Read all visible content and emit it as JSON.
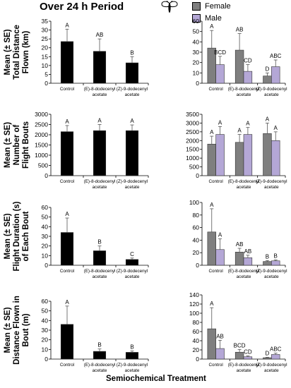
{
  "figure": {
    "title": "Over 24 h Period",
    "xlabel": "Semiochemical Treatment",
    "legend": [
      {
        "label": "Female",
        "color": "#7f7f7f"
      },
      {
        "label": "Male",
        "color": "#b4a7d6"
      }
    ],
    "icon": "moth-icon"
  },
  "chart_data": [
    {
      "type": "bar",
      "panel": "total-distance-overall",
      "ylabel": "Mean (± SE) Total Distance Flown (km)",
      "categories": [
        "Control",
        "(E)-8-dodecenyl acetate",
        "(Z)-9-dodecenyl acetate"
      ],
      "ylim": [
        0,
        35
      ],
      "yticks": [
        0,
        5,
        10,
        15,
        20,
        25,
        30,
        35
      ],
      "series": [
        {
          "color": "#000000",
          "values": [
            23.5,
            18,
            11.5
          ],
          "errors": [
            7,
            7,
            3.5
          ],
          "letters": [
            "A",
            "AB",
            "B"
          ]
        }
      ]
    },
    {
      "type": "bar",
      "panel": "total-distance-sex",
      "categories": [
        "Control",
        "(E)-8-dodecenyl acetate",
        "(Z)-9-dodecenyl acetate"
      ],
      "ylim": [
        0,
        60
      ],
      "yticks": [
        0,
        10,
        20,
        30,
        40,
        50,
        60
      ],
      "series": [
        {
          "name": "Female",
          "color": "#7f7f7f",
          "values": [
            34,
            32,
            7
          ],
          "errors": [
            17,
            16,
            3
          ],
          "letters": [
            "A",
            "AB",
            "D"
          ]
        },
        {
          "name": "Male",
          "color": "#b4a7d6",
          "values": [
            18,
            11.5,
            16
          ],
          "errors": [
            8,
            6.5,
            6.5
          ],
          "letters": [
            "BCD",
            "CD",
            "ABC"
          ]
        }
      ]
    },
    {
      "type": "bar",
      "panel": "flight-bouts-overall",
      "ylabel": "Mean (± SE) Number of Flight Bouts",
      "categories": [
        "Control",
        "(E)-8-dodecenyl acetate",
        "(Z)-9-dodecenyl acetate"
      ],
      "ylim": [
        0,
        3000
      ],
      "yticks": [
        0,
        500,
        1000,
        1500,
        2000,
        2500,
        3000
      ],
      "series": [
        {
          "color": "#000000",
          "values": [
            2150,
            2200,
            2200
          ],
          "errors": [
            300,
            300,
            280
          ],
          "letters": [
            "A",
            "A",
            "A"
          ]
        }
      ]
    },
    {
      "type": "bar",
      "panel": "flight-bouts-sex",
      "categories": [
        "Control",
        "(E)-8-dodecenyl acetate",
        "(Z)-9-dodecenyl acetate"
      ],
      "ylim": [
        0,
        3500
      ],
      "yticks": [
        0,
        500,
        1000,
        1500,
        2000,
        2500,
        3000,
        3500
      ],
      "series": [
        {
          "name": "Female",
          "color": "#7f7f7f",
          "values": [
            1800,
            1900,
            2400
          ],
          "errors": [
            450,
            450,
            600
          ],
          "letters": [
            "A",
            "A",
            "A"
          ]
        },
        {
          "name": "Male",
          "color": "#b4a7d6",
          "values": [
            2350,
            2350,
            2000
          ],
          "errors": [
            450,
            400,
            500
          ],
          "letters": [
            "A",
            "A",
            "A"
          ]
        }
      ]
    },
    {
      "type": "bar",
      "panel": "bout-duration-overall",
      "ylabel": "Mean (± SE) Flight Duration (s) of Each Bout",
      "categories": [
        "Control",
        "(E)-8-dodecenyl acetate",
        "(Z)-9-dodecenyl acetate"
      ],
      "ylim": [
        0,
        60
      ],
      "yticks": [
        0,
        10,
        20,
        30,
        40,
        50,
        60
      ],
      "series": [
        {
          "color": "#000000",
          "values": [
            34,
            15,
            6
          ],
          "errors": [
            15,
            5,
            1.5
          ],
          "letters": [
            "A",
            "B",
            "C"
          ]
        }
      ]
    },
    {
      "type": "bar",
      "panel": "bout-duration-sex",
      "categories": [
        "Control",
        "(E)-8-dodecenyl acetate",
        "(Z)-9-dodecenyl acetate"
      ],
      "ylim": [
        0,
        100
      ],
      "yticks": [
        0,
        20,
        40,
        60,
        80,
        100
      ],
      "series": [
        {
          "name": "Female",
          "color": "#7f7f7f",
          "values": [
            53,
            21,
            6
          ],
          "errors": [
            37,
            6,
            1.5
          ],
          "letters": [
            "A",
            "AB",
            "B"
          ]
        },
        {
          "name": "Male",
          "color": "#b4a7d6",
          "values": [
            25,
            12,
            7
          ],
          "errors": [
            17,
            4,
            1.5
          ],
          "letters": [
            "A",
            "AB",
            "B"
          ]
        }
      ]
    },
    {
      "type": "bar",
      "panel": "bout-distance-overall",
      "ylabel": "Mean (± SE) Distance Flown in Bout (m)",
      "categories": [
        "Control",
        "(E)-8-dodecenyl acetate",
        "(Z)-9-dodecenyl acetate"
      ],
      "ylim": [
        0,
        60
      ],
      "yticks": [
        0,
        10,
        20,
        30,
        40,
        50,
        60
      ],
      "series": [
        {
          "color": "#000000",
          "values": [
            36,
            8,
            7
          ],
          "errors": [
            19,
            2.5,
            1.5
          ],
          "letters": [
            "A",
            "B",
            "B"
          ]
        }
      ]
    },
    {
      "type": "bar",
      "panel": "bout-distance-sex",
      "categories": [
        "Control",
        "(E)-8-dodecenyl acetate",
        "(Z)-9-dodecenyl acetate"
      ],
      "ylim": [
        0,
        140
      ],
      "yticks": [
        0,
        20,
        40,
        60,
        80,
        100,
        120,
        140
      ],
      "series": [
        {
          "name": "Female",
          "color": "#7f7f7f",
          "values": [
            66,
            15,
            3
          ],
          "errors": [
            46,
            6,
            1
          ],
          "letters": [
            "A",
            "BCD",
            "D"
          ]
        },
        {
          "name": "Male",
          "color": "#b4a7d6",
          "values": [
            23,
            5,
            10
          ],
          "errors": [
            18,
            2,
            3
          ],
          "letters": [
            "AB",
            "CD",
            "ABC"
          ]
        }
      ]
    }
  ]
}
